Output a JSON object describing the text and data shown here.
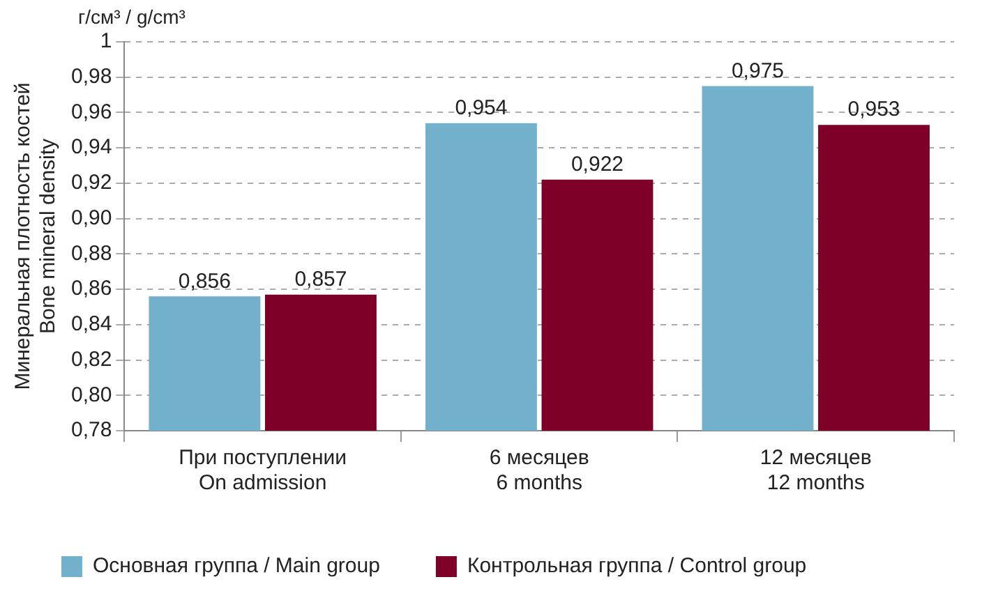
{
  "chart_data": {
    "type": "bar",
    "ylabel": "Минеральная плотность костей\nBone mineral density",
    "annotations": [
      "г/см³ / g/cm³"
    ],
    "categories": [
      "При поступлении\nOn admission",
      "6 месяцев\n6 months",
      "12 месяцев\n12 months"
    ],
    "series": [
      {
        "name": "Основная группа / Main group",
        "color": "#72b0cb",
        "values": [
          0.856,
          0.954,
          0.975
        ],
        "value_labels": [
          "0,856",
          "0,954",
          "0,975"
        ]
      },
      {
        "name": "Контрольная группа / Control group",
        "color": "#7e0029",
        "values": [
          0.857,
          0.922,
          0.953
        ],
        "value_labels": [
          "0,857",
          "0,922",
          "0,953"
        ]
      }
    ],
    "ylim": [
      0.78,
      1
    ],
    "yticks": [
      {
        "value": 0.78,
        "label": "0,78"
      },
      {
        "value": 0.8,
        "label": "0,80"
      },
      {
        "value": 0.82,
        "label": "0,82"
      },
      {
        "value": 0.84,
        "label": "0,84"
      },
      {
        "value": 0.86,
        "label": "0,86"
      },
      {
        "value": 0.88,
        "label": "0,88"
      },
      {
        "value": 0.9,
        "label": "0,90"
      },
      {
        "value": 0.92,
        "label": "0,92"
      },
      {
        "value": 0.94,
        "label": "0,94"
      },
      {
        "value": 0.96,
        "label": "0,96"
      },
      {
        "value": 0.98,
        "label": "0,98"
      },
      1
    ],
    "grid": "y",
    "legend": "bottom left"
  }
}
